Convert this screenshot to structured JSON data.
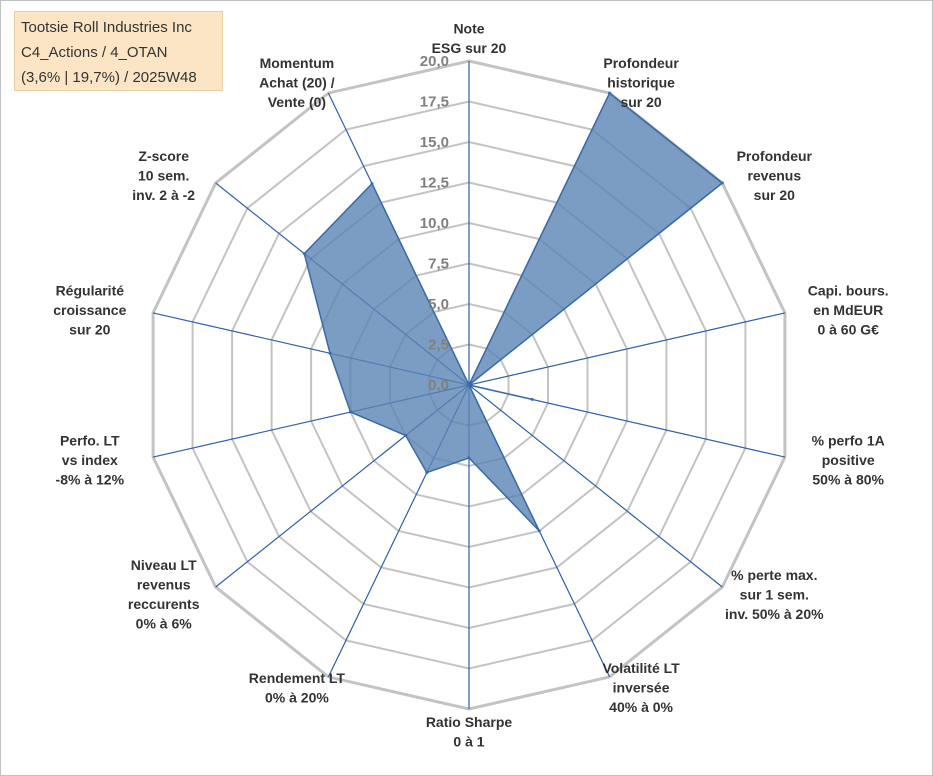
{
  "title_box": {
    "line1": "Tootsie Roll Industries Inc",
    "line2": "C4_Actions / 4_OTAN",
    "line3": "(3,6% | 19,7%) / 2025W48"
  },
  "chart_data": {
    "type": "radar",
    "rmin": 0,
    "rmax": 20,
    "ticks": [
      "0,0",
      "2,5",
      "5,0",
      "7,5",
      "10,0",
      "12,5",
      "15,0",
      "17,5",
      "20,0"
    ],
    "axes": [
      {
        "id": "note-esg",
        "lines": [
          "Note",
          "ESG sur 20"
        ]
      },
      {
        "id": "profondeur-historique",
        "lines": [
          "Profondeur",
          "historique",
          "sur 20"
        ]
      },
      {
        "id": "profondeur-revenus",
        "lines": [
          "Profondeur",
          "revenus",
          "sur 20"
        ]
      },
      {
        "id": "capi-bours",
        "lines": [
          "Capi. bours.",
          "en MdEUR",
          "0 à 60 G€"
        ]
      },
      {
        "id": "perfo-1a",
        "lines": [
          "% perfo 1A",
          "positive",
          "50% à 80%"
        ]
      },
      {
        "id": "perte-max",
        "lines": [
          "% perte max.",
          "sur 1 sem.",
          "inv. 50% à 20%"
        ]
      },
      {
        "id": "volatilite-lt",
        "lines": [
          "Volatilité LT",
          "inversée",
          "40% à 0%"
        ]
      },
      {
        "id": "ratio-sharpe",
        "lines": [
          "Ratio Sharpe",
          "0 à 1"
        ]
      },
      {
        "id": "rendement-lt",
        "lines": [
          "Rendement LT",
          "0% à 20%"
        ]
      },
      {
        "id": "niveau-lt-revenus",
        "lines": [
          "Niveau LT",
          "revenus",
          "reccurents",
          "0% à 6%"
        ]
      },
      {
        "id": "perfo-lt-index",
        "lines": [
          "Perfo. LT",
          "vs index",
          "-8% à 12%"
        ]
      },
      {
        "id": "regularite-croissance",
        "lines": [
          "Régularité",
          "croissance",
          "sur 20"
        ]
      },
      {
        "id": "z-score",
        "lines": [
          "Z-score",
          "10 sem.",
          "inv. 2 à -2"
        ]
      },
      {
        "id": "momentum",
        "lines": [
          "Momentum",
          "Achat (20) /",
          "Vente (0)"
        ]
      }
    ],
    "values": [
      0,
      20,
      20,
      0,
      4,
      0,
      10,
      4.5,
      6,
      5,
      7.5,
      8.8,
      13,
      13.8
    ],
    "colors": {
      "fill": "#5b84b4",
      "stroke": "#3a6aa6",
      "spokes": "#2f5fa7",
      "rings": "#c3c3c3"
    },
    "grid": true,
    "legend": "none"
  }
}
